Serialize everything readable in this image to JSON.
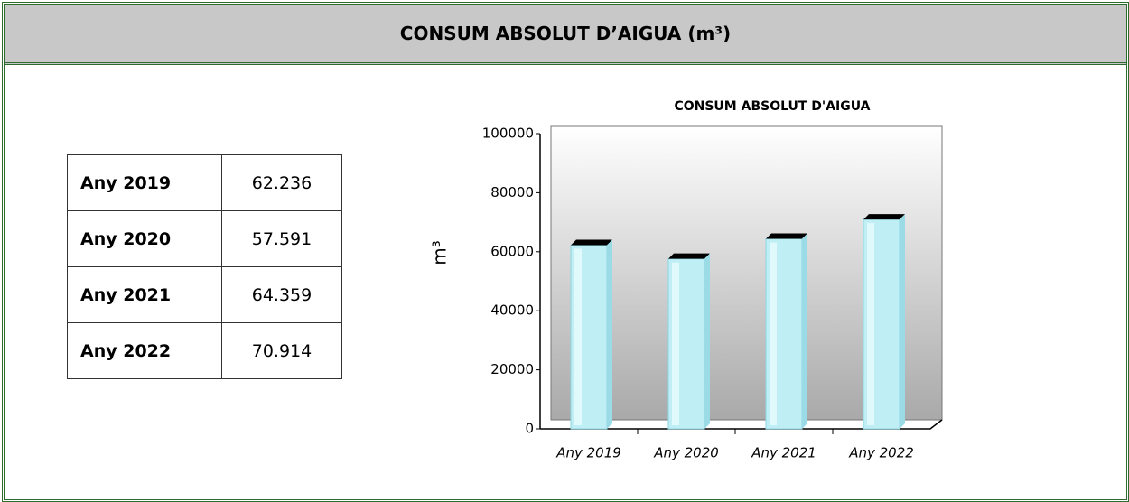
{
  "header": {
    "title": "CONSUM ABSOLUT D’AIGUA (m³)"
  },
  "table": {
    "rows": [
      [
        "Any 2019",
        "62.236"
      ],
      [
        "Any 2020",
        "57.591"
      ],
      [
        "Any 2021",
        "64.359"
      ],
      [
        "Any 2022",
        "70.914"
      ]
    ]
  },
  "chart_data": {
    "type": "bar",
    "title": "CONSUM ABSOLUT D'AIGUA",
    "y_label": "m³",
    "categories": [
      "Any 2019",
      "Any 2020",
      "Any 2021",
      "Any 2022"
    ],
    "values": [
      62236,
      57591,
      64359,
      70914
    ],
    "color": "#bfeff5",
    "ylim": [
      0,
      100000
    ],
    "yticks": [
      0,
      20000,
      40000,
      60000,
      80000,
      100000
    ]
  }
}
